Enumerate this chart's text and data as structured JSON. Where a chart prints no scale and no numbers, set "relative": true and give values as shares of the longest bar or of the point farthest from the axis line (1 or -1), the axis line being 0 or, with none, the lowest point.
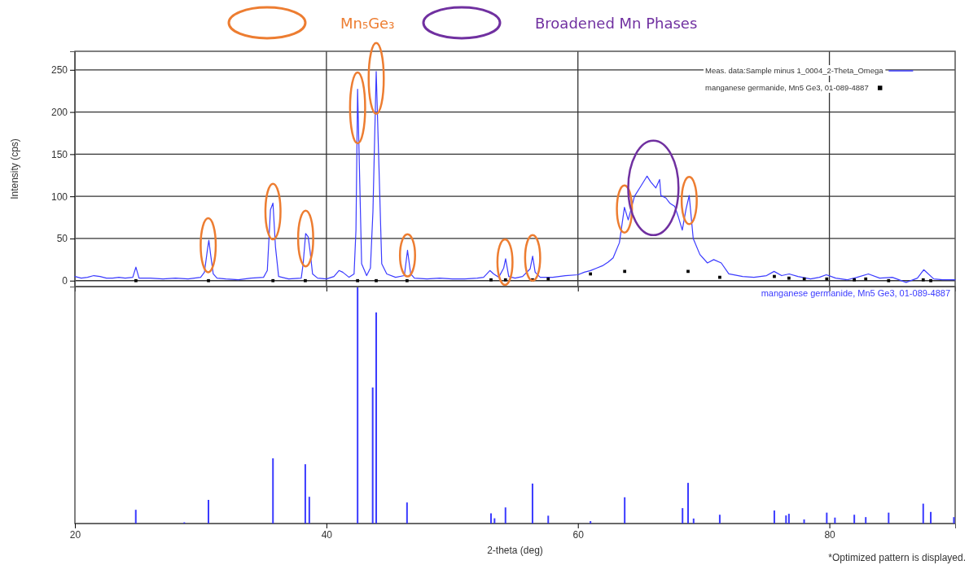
{
  "chart_data": [
    {
      "type": "line",
      "ylabel": "Intensity (cps)",
      "xlim": [
        20,
        90
      ],
      "xticks": [
        20,
        40,
        60,
        80
      ],
      "ylim": [
        -7,
        272
      ],
      "yticks": [
        0,
        50,
        100,
        150,
        200,
        250
      ],
      "grid": true,
      "tick_labels": "y",
      "legend": "top right",
      "annotations": [
        "Mn₅Ge₃",
        "Broadened Mn Phases"
      ],
      "series": [
        {
          "name": "Meas. data:Sample minus 1_0004_2-Theta_Omega",
          "color": "#3b3bff",
          "x": [
            20,
            20.5,
            21,
            21.5,
            22,
            22.5,
            23,
            23.5,
            24,
            24.6,
            24.85,
            25.1,
            26,
            27,
            28,
            29,
            30,
            30.3,
            30.55,
            30.65,
            30.8,
            31,
            31.3,
            32,
            33,
            34,
            35,
            35.3,
            35.55,
            35.75,
            35.95,
            36.2,
            37,
            38,
            38.15,
            38.35,
            38.55,
            38.7,
            38.9,
            39.3,
            40,
            40.6,
            41,
            41.3,
            41.8,
            42.2,
            42.35,
            42.48,
            42.6,
            42.8,
            43.2,
            43.5,
            43.7,
            43.96,
            44.15,
            44.4,
            44.8,
            45.5,
            46.2,
            46.45,
            46.7,
            47,
            48,
            49,
            50,
            51,
            52,
            52.5,
            53,
            53.3,
            53.7,
            54.1,
            54.25,
            54.5,
            55,
            55.6,
            56.2,
            56.4,
            56.6,
            57,
            58,
            59,
            60,
            60.5,
            61,
            61.5,
            62,
            62.4,
            62.8,
            63.3,
            63.7,
            64,
            64.5,
            65,
            65.5,
            65.8,
            66.2,
            66.5,
            66.6,
            67,
            67.3,
            67.7,
            68,
            68.3,
            68.6,
            68.85,
            69.17,
            69.7,
            70.3,
            70.8,
            71.4,
            72,
            73.1,
            74,
            75,
            75.6,
            76.2,
            76.8,
            77.5,
            78.5,
            79.2,
            79.75,
            80.5,
            81.4,
            82.2,
            83.1,
            84,
            85,
            86.1,
            87,
            87.5,
            88.3,
            89,
            90
          ],
          "values": [
            5,
            3,
            4,
            6,
            5,
            3,
            3,
            4,
            3,
            4,
            16,
            3,
            3,
            2,
            3,
            2,
            4,
            10,
            38,
            48,
            30,
            8,
            3,
            2,
            1,
            3,
            4,
            12,
            84,
            92,
            40,
            5,
            2,
            3,
            20,
            56,
            52,
            35,
            8,
            3,
            2,
            5,
            12,
            10,
            4,
            8,
            60,
            227,
            150,
            20,
            6,
            15,
            82,
            248,
            150,
            20,
            8,
            4,
            6,
            36,
            8,
            3,
            2,
            3,
            2,
            2,
            3,
            4,
            12,
            8,
            4,
            15,
            26,
            5,
            3,
            5,
            14,
            29,
            10,
            4,
            4,
            6,
            7,
            10,
            12,
            15,
            18,
            22,
            27,
            45,
            87,
            72,
            100,
            112,
            124,
            117,
            110,
            120,
            101,
            98,
            92,
            88,
            75,
            60,
            85,
            101,
            50,
            31,
            21,
            25,
            21,
            8,
            5,
            4,
            6,
            11,
            6,
            8,
            5,
            2,
            4,
            7,
            3,
            1,
            4,
            8,
            3,
            4,
            -2,
            3,
            13,
            2,
            1,
            1
          ]
        },
        {
          "name": "manganese germanide, Mn5 Ge3, 01-089-4887",
          "type": "scatter",
          "marker": "square",
          "color": "#000000",
          "x": [
            24.85,
            30.62,
            35.75,
            38.32,
            42.48,
            43.96,
            46.41,
            53.09,
            54.24,
            56.39,
            57.64,
            61.0,
            63.72,
            68.76,
            71.28,
            75.62,
            76.78,
            78.0,
            79.79,
            81.98,
            82.89,
            84.71,
            87.46,
            88.06
          ],
          "values": [
            0,
            0,
            0,
            0,
            0,
            0,
            0,
            1,
            1,
            1,
            2,
            8,
            11,
            11,
            4,
            5,
            3,
            2,
            2,
            1,
            2,
            0,
            1,
            0
          ]
        }
      ]
    },
    {
      "type": "bar",
      "relative": true,
      "xlabel": "2-theta (deg)",
      "xlim": [
        20,
        90
      ],
      "xticks": [
        20,
        40,
        60,
        80
      ],
      "annotations": [
        "*Optimized pattern is displayed."
      ],
      "series": [
        {
          "name": "manganese germanide, Mn5 Ge3, 01-089-4887",
          "color": "#3b3bff",
          "x": [
            24.84,
            28.7,
            30.62,
            35.75,
            38.32,
            38.64,
            42.48,
            43.68,
            43.96,
            46.41,
            53.09,
            53.37,
            54.24,
            56.39,
            57.64,
            61.0,
            63.72,
            68.32,
            68.76,
            69.2,
            71.28,
            75.62,
            76.55,
            76.78,
            77.99,
            79.79,
            80.44,
            81.98,
            82.89,
            84.71,
            87.46,
            88.06,
            89.9
          ],
          "values": [
            0.058,
            0.005,
            0.1,
            0.276,
            0.251,
            0.113,
            1,
            0.576,
            0.894,
            0.089,
            0.043,
            0.022,
            0.068,
            0.169,
            0.033,
            0.01,
            0.111,
            0.065,
            0.172,
            0.021,
            0.037,
            0.055,
            0.034,
            0.041,
            0.017,
            0.046,
            0.025,
            0.037,
            0.027,
            0.046,
            0.084,
            0.049,
            0.027
          ]
        }
      ]
    }
  ]
}
